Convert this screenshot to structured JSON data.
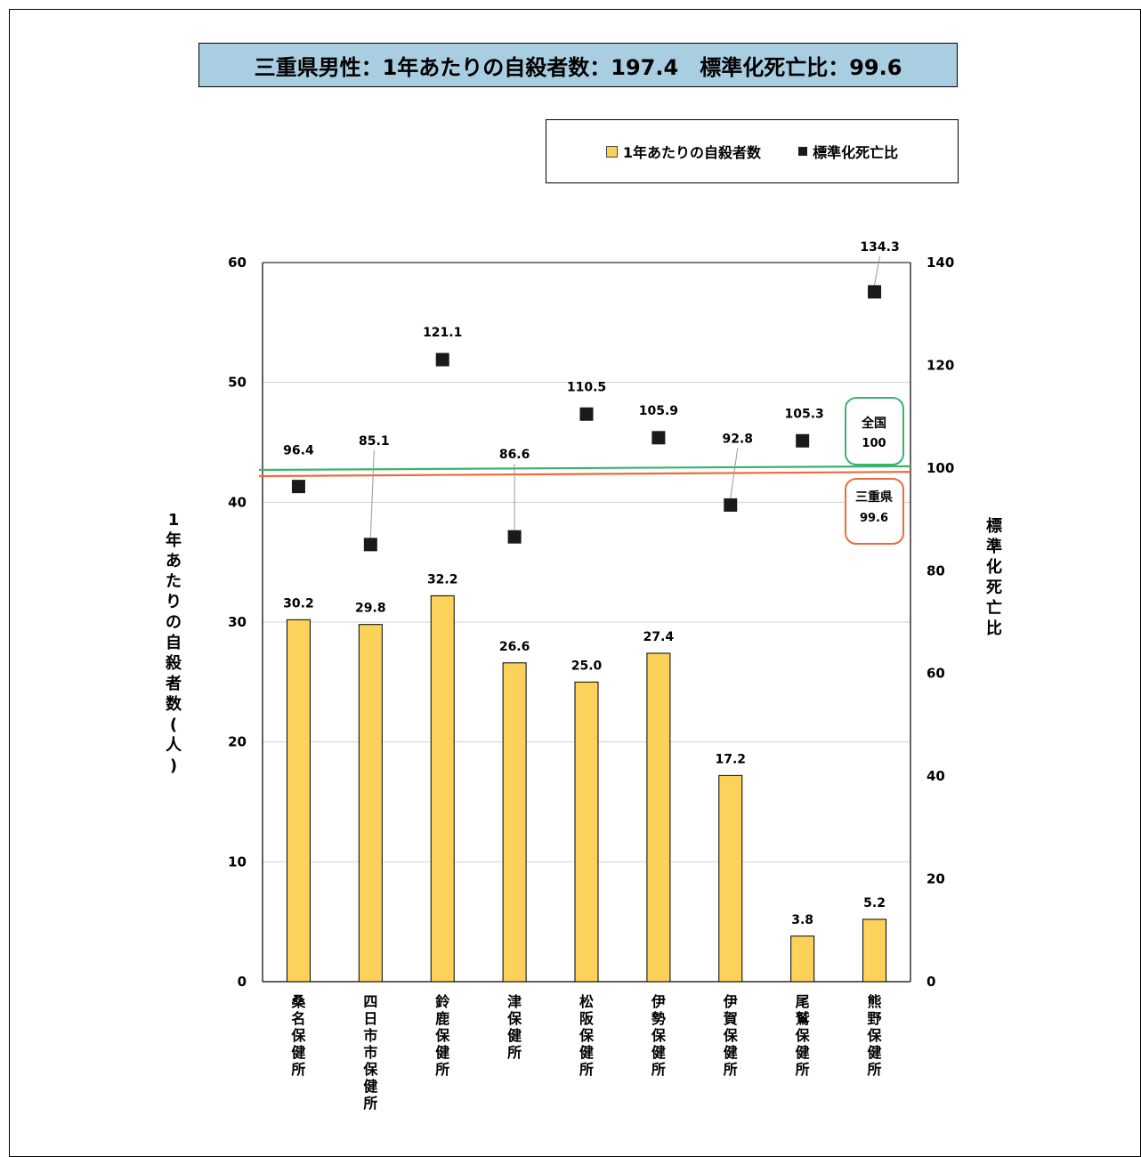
{
  "title": "三重県男性：1年あたりの自殺者数：197.4　標準化死亡比：99.6",
  "legend": {
    "bar_label": "1年あたりの自殺者数",
    "marker_label": "標準化死亡比"
  },
  "colors": {
    "bar": "#fdd25a",
    "marker": "#1a1a1a",
    "national_line": "#3bb36b",
    "prefecture_line": "#ee6a3c",
    "title_bg": "#a9cde1"
  },
  "chart_data": {
    "type": "bar",
    "categories": [
      "桑名保健所",
      "四日市市保健所",
      "鈴鹿保健所",
      "津保健所",
      "松阪保健所",
      "伊勢保健所",
      "伊賀保健所",
      "尾鷲保健所",
      "熊野保健所"
    ],
    "series": [
      {
        "name": "1年あたりの自殺者数",
        "type": "bar",
        "axis": "left",
        "values": [
          30.2,
          29.8,
          32.2,
          26.6,
          25.0,
          27.4,
          17.2,
          3.8,
          5.2
        ],
        "labels": [
          "30.2",
          "29.8",
          "32.2",
          "26.6",
          "25.0",
          "27.4",
          "17.2",
          "3.8",
          "5.2"
        ]
      },
      {
        "name": "標準化死亡比",
        "type": "scatter",
        "axis": "right",
        "values": [
          96.4,
          85.1,
          121.1,
          86.6,
          110.5,
          105.9,
          92.8,
          105.3,
          134.3
        ],
        "labels": [
          "96.4",
          "85.1",
          "121.1",
          "86.6",
          "110.5",
          "105.9",
          "92.8",
          "105.3",
          "134.3"
        ]
      }
    ],
    "ylabel_left": "1年あたりの自殺者数(人)",
    "ylabel_right": "標準化死亡比",
    "ylim_left": [
      0,
      60
    ],
    "ylim_right": [
      0,
      140
    ],
    "yticks_left": [
      "0",
      "10",
      "20",
      "30",
      "40",
      "50",
      "60"
    ],
    "yticks_right": [
      "0",
      "20",
      "40",
      "60",
      "80",
      "100",
      "120",
      "140"
    ],
    "reference_lines": [
      {
        "label": "全国",
        "value_label": "100",
        "value": 100
      },
      {
        "label": "三重県",
        "value_label": "99.6",
        "value": 99.6
      }
    ],
    "grid": true
  }
}
